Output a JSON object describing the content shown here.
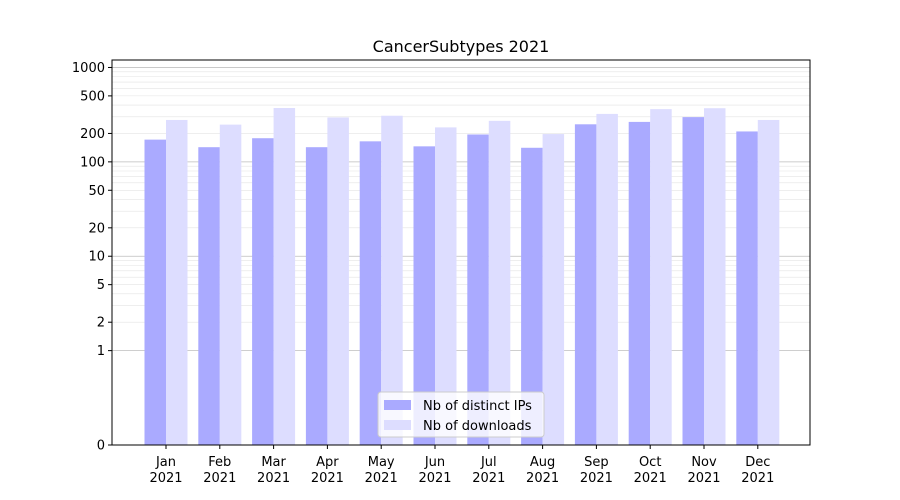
{
  "chart_data": {
    "type": "bar",
    "title": "CancerSubtypes 2021",
    "xlabel": "",
    "ylabel": "",
    "scale": "symlog",
    "ylim": [
      0,
      1200
    ],
    "yticks": [
      0,
      1,
      2,
      5,
      10,
      20,
      50,
      100,
      200,
      500,
      1000
    ],
    "grid": true,
    "legend_position": "lower center",
    "categories": [
      [
        "Jan",
        "2021"
      ],
      [
        "Feb",
        "2021"
      ],
      [
        "Mar",
        "2021"
      ],
      [
        "Apr",
        "2021"
      ],
      [
        "May",
        "2021"
      ],
      [
        "Jun",
        "2021"
      ],
      [
        "Jul",
        "2021"
      ],
      [
        "Aug",
        "2021"
      ],
      [
        "Sep",
        "2021"
      ],
      [
        "Oct",
        "2021"
      ],
      [
        "Nov",
        "2021"
      ],
      [
        "Dec",
        "2021"
      ]
    ],
    "series": [
      {
        "name": "Nb of distinct IPs",
        "color": "#aaaaff",
        "values": [
          172,
          143,
          178,
          143,
          165,
          146,
          195,
          141,
          250,
          265,
          298,
          210
        ]
      },
      {
        "name": "Nb of downloads",
        "color": "#ddddff",
        "values": [
          278,
          248,
          372,
          295,
          308,
          232,
          272,
          197,
          322,
          362,
          370,
          278
        ]
      }
    ]
  }
}
